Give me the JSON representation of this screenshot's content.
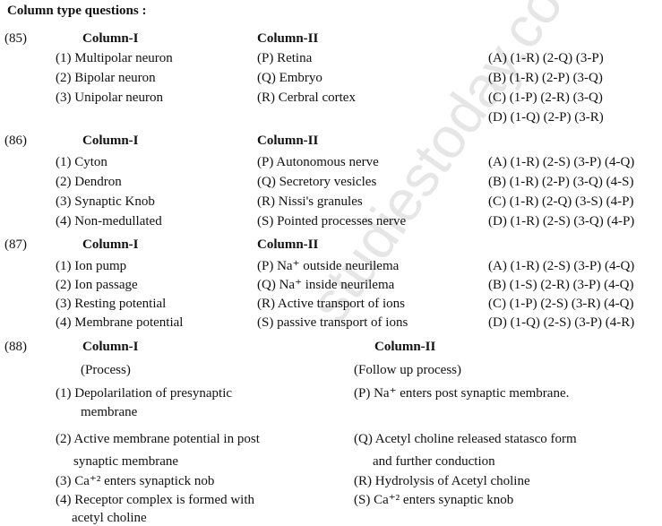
{
  "watermark": "studiestoday.com",
  "title": "Column type questions :",
  "questions": [
    {
      "number": "(85)",
      "col1_header": "Column-I",
      "col2_header": "Column-II",
      "col1": [
        "(1) Multipolar neuron",
        "(2) Bipolar neuron",
        "(3) Unipolar neuron"
      ],
      "col2": [
        "(P) Retina",
        "(Q) Embryo",
        "(R) Cerbral cortex"
      ],
      "options": [
        "(A) (1-R) (2-Q) (3-P)",
        "(B) (1-R) (2-P) (3-Q)",
        "(C) (1-P) (2-R) (3-Q)",
        "(D) (1-Q) (2-P) (3-R)"
      ]
    },
    {
      "number": "(86)",
      "col1_header": "Column-I",
      "col2_header": "Column-II",
      "col1": [
        "(1) Cyton",
        "(2) Dendron",
        "(3) Synaptic Knob",
        "(4) Non-medullated"
      ],
      "col2": [
        "(P) Autonomous nerve",
        "(Q) Secretory vesicles",
        "(R) Nissi's granules",
        "(S) Pointed processes nerve"
      ],
      "options": [
        "(A) (1-R) (2-S) (3-P) (4-Q)",
        "(B) (1-R) (2-P) (3-Q) (4-S)",
        "(C) (1-R) (2-Q) (3-S) (4-P)",
        "(D) (1-R) (2-S) (3-Q) (4-P)"
      ]
    },
    {
      "number": "(87)",
      "col1_header": "Column-I",
      "col2_header": "Column-II",
      "col1": [
        "(1) Ion pump",
        "(2) Ion passage",
        "(3) Resting potential",
        "(4) Membrane potential"
      ],
      "col2": [
        "(P) Na⁺ outside neurilema",
        "(Q) Na⁺ inside neurilema",
        "(R) Active transport of ions",
        "(S) passive transport of ions"
      ],
      "options": [
        "(A) (1-R) (2-S) (3-P) (4-Q)",
        "(B) (1-S) (2-R) (3-P) (4-Q)",
        "(C) (1-P) (2-S) (3-R) (4-Q)",
        "(D) (1-Q) (2-S) (3-P) (4-R)"
      ]
    },
    {
      "number": "(88)",
      "col1_header": "Column-I",
      "col2_header": "Column-II",
      "col1_sub": "(Process)",
      "col2_sub": "(Follow up process)",
      "col1": [
        "(1) Depolarilation of presynaptic",
        "membrane",
        "(2) Active membrane potential in post",
        "synaptic membrane",
        "(3) Ca⁺² enters synaptick nob",
        "(4) Receptor complex is formed with",
        "acetyl choline"
      ],
      "col2": [
        "(P) Na⁺ enters post synaptic membrane.",
        "(Q) Acetyl choline released statasco form",
        "and further conduction",
        "(R) Hydrolysis of Acetyl choline",
        "(S) Ca⁺² enters synaptic knob"
      ]
    }
  ]
}
